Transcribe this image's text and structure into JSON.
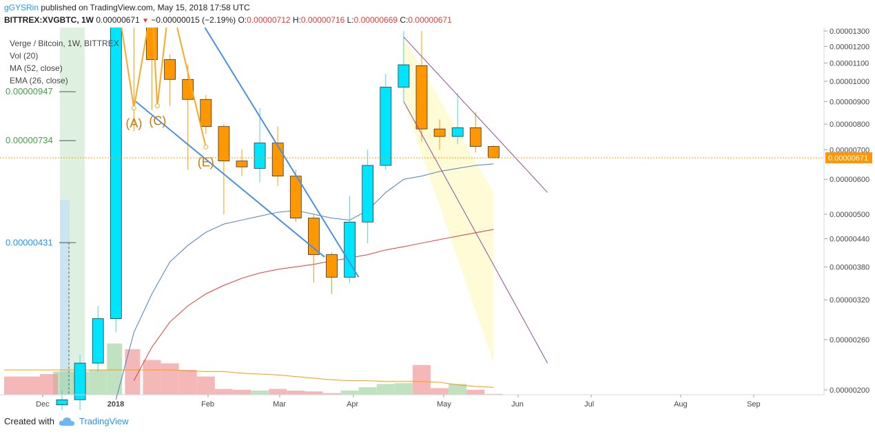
{
  "header": {
    "author": "gGYSRin",
    "published": "published on TradingView.com, May 15, 2018 17:58 UTC",
    "symbol": "BITTREX:XVGBTC, 1W",
    "last": "0.00000671",
    "change": "−0.00000015 (−2.19%)",
    "o_label": "O:",
    "o_val": "0.00000712",
    "h_label": "H:",
    "h_val": "0.00000716",
    "l_label": "L:",
    "l_val": "0.00000669",
    "c_label": "C:",
    "c_val": "0.00000671"
  },
  "legend": {
    "title": "Verge / Bitcoin, 1W, BITTREX",
    "vol": "Vol (20)",
    "ma": "MA (52, close)",
    "ema": "EMA (26, close)"
  },
  "footer": {
    "created": "Created with",
    "brand": "TradingView"
  },
  "colors": {
    "up": "#00e5ff",
    "down": "#ff9800",
    "ma": "#e53935",
    "ema": "#4a80c0",
    "vol_ma": "#ff9800",
    "trend": "#4a90e2",
    "channel": "#8e4a9e"
  },
  "chart_data": {
    "type": "candlestick",
    "x_ticks": [
      "Dec",
      "2018",
      "Feb",
      "Mar",
      "Apr",
      "May",
      "Jun",
      "Jul",
      "Aug",
      "Sep"
    ],
    "y_ticks": [
      "0.00001300",
      "0.00001200",
      "0.00001100",
      "0.00001000",
      "0.00000900",
      "0.00000800",
      "0.00000700",
      "0.00000600",
      "0.00000500",
      "0.00000440",
      "0.00000380",
      "0.00000320",
      "0.00000260",
      "0.00000200"
    ],
    "y_scale": "log",
    "last_price_label": "0.00000671",
    "level_labels": [
      {
        "label": "0.00000947",
        "value": 9.47e-06
      },
      {
        "label": "0.00000734",
        "value": 7.34e-06
      },
      {
        "label": "0.00000431",
        "value": 4.31e-06
      }
    ],
    "wave_labels": [
      "(A)",
      "(C)",
      "(E)"
    ],
    "candles": [
      {
        "o": 1.85e-06,
        "h": 2e-06,
        "l": 1.8e-06,
        "c": 1.9e-06
      },
      {
        "o": 1.9e-06,
        "h": 2.4e-06,
        "l": 1.8e-06,
        "c": 2.3e-06
      },
      {
        "o": 2.3e-06,
        "h": 3.1e-06,
        "l": 2.2e-06,
        "c": 2.9e-06
      },
      {
        "o": 2.9e-06,
        "h": 1.6e-05,
        "l": 2.7e-06,
        "c": 1.5e-05
      },
      {
        "o": 1.5e-05,
        "h": 1.6e-05,
        "l": 7.7e-06,
        "c": 1.4e-05
      },
      {
        "o": 1.4e-05,
        "h": 1.5e-05,
        "l": 8.6e-06,
        "c": 1.12e-05
      },
      {
        "o": 1.12e-05,
        "h": 1.15e-05,
        "l": 8.8e-06,
        "c": 1.01e-05
      },
      {
        "o": 1.01e-05,
        "h": 1.09e-05,
        "l": 6.3e-06,
        "c": 9.1e-06
      },
      {
        "o": 9.1e-06,
        "h": 9.3e-06,
        "l": 7.6e-06,
        "c": 7.9e-06
      },
      {
        "o": 7.9e-06,
        "h": 8e-06,
        "l": 5e-06,
        "c": 6.6e-06
      },
      {
        "o": 6.6e-06,
        "h": 7e-06,
        "l": 6.1e-06,
        "c": 6.4e-06
      },
      {
        "o": 6.35e-06,
        "h": 8.7e-06,
        "l": 5.9e-06,
        "c": 7.25e-06
      },
      {
        "o": 7.25e-06,
        "h": 7.9e-06,
        "l": 5.8e-06,
        "c": 6.1e-06
      },
      {
        "o": 6.1e-06,
        "h": 6.3e-06,
        "l": 4.8e-06,
        "c": 4.9e-06
      },
      {
        "o": 4.9e-06,
        "h": 5e-06,
        "l": 3.5e-06,
        "c": 4.05e-06
      },
      {
        "o": 4.05e-06,
        "h": 4.1e-06,
        "l": 3.3e-06,
        "c": 3.6e-06
      },
      {
        "o": 3.6e-06,
        "h": 5.5e-06,
        "l": 3.5e-06,
        "c": 4.8e-06
      },
      {
        "o": 4.8e-06,
        "h": 7e-06,
        "l": 4.3e-06,
        "c": 6.45e-06
      },
      {
        "o": 6.45e-06,
        "h": 1.04e-05,
        "l": 6.3e-06,
        "c": 9.7e-06
      },
      {
        "o": 9.7e-06,
        "h": 1.3e-05,
        "l": 9e-06,
        "c": 1.09e-05
      },
      {
        "o": 1.085e-05,
        "h": 1.3e-05,
        "l": 7.3e-06,
        "c": 7.8e-06
      },
      {
        "o": 7.8e-06,
        "h": 8.2e-06,
        "l": 7e-06,
        "c": 7.5e-06
      },
      {
        "o": 7.5e-06,
        "h": 9.4e-06,
        "l": 7.2e-06,
        "c": 7.85e-06
      },
      {
        "o": 7.85e-06,
        "h": 8.5e-06,
        "l": 6.9e-06,
        "c": 7.12e-06
      },
      {
        "o": 7.12e-06,
        "h": 7.16e-06,
        "l": 6.69e-06,
        "c": 6.71e-06
      }
    ],
    "volume_relative": [
      0.28,
      0.28,
      0.3,
      0.62,
      0.55,
      0.42,
      0.38,
      0.3,
      0.22,
      0.07,
      0.06,
      0.05,
      0.07,
      0.05,
      0.04,
      0.02,
      0.05,
      0.09,
      0.13,
      0.14,
      0.36,
      0.08,
      0.13,
      0.06,
      0.01
    ],
    "ma52": [
      null,
      null,
      null,
      null,
      2.1e-06,
      2.5e-06,
      2.85e-06,
      3.1e-06,
      3.3e-06,
      3.45e-06,
      3.58e-06,
      3.68e-06,
      3.75e-06,
      3.8e-06,
      3.85e-06,
      3.92e-06,
      3.98e-06,
      4.05e-06,
      4.15e-06,
      4.22e-06,
      4.3e-06,
      4.38e-06,
      4.46e-06,
      4.54e-06,
      4.62e-06
    ],
    "ema26": [
      null,
      null,
      null,
      1.9e-06,
      2.7e-06,
      3.3e-06,
      3.9e-06,
      4.25e-06,
      4.55e-06,
      4.75e-06,
      4.85e-06,
      4.95e-06,
      5.05e-06,
      5.1e-06,
      5e-06,
      4.9e-06,
      4.85e-06,
      5.1e-06,
      5.6e-06,
      6e-06,
      6.1e-06,
      6.25e-06,
      6.35e-06,
      6.45e-06,
      6.5e-06
    ],
    "vol_ma": [
      0.3,
      0.3,
      0.3,
      0.3,
      0.3,
      0.3,
      0.3,
      0.29,
      0.28,
      0.28,
      0.26,
      0.25,
      0.24,
      0.22,
      0.2,
      0.18,
      0.17,
      0.17,
      0.16,
      0.16,
      0.16,
      0.15,
      0.12,
      0.1,
      0.09
    ],
    "wave_points": [
      {
        "i": 3,
        "v": 1.6e-05
      },
      {
        "i": 4,
        "v": 8.7e-06,
        "label": "(A)"
      },
      {
        "i": 5,
        "v": 1.5e-05
      },
      {
        "i": 5.3,
        "v": 8.8e-06,
        "label": "(C)"
      },
      {
        "i": 6,
        "v": 1.55e-05
      },
      {
        "i": 8,
        "v": 7.1e-06,
        "label": "(E)"
      }
    ],
    "trendlines": [
      {
        "from": {
          "i": 4.1,
          "v": 9e-06
        },
        "to": {
          "i": 14.6,
          "v": 4e-06
        }
      },
      {
        "from": {
          "i": 6.7,
          "v": 1.6e-05
        },
        "to": {
          "i": 16.5,
          "v": 3.6e-06
        }
      }
    ],
    "channel": {
      "upper": {
        "from": {
          "i": 19,
          "v": 1.26e-05
        },
        "to": {
          "i": 27,
          "v": 5.6e-06
        }
      },
      "lower": {
        "from": {
          "i": 19,
          "v": 9e-06
        },
        "to": {
          "i": 27,
          "v": 2.3e-06
        }
      }
    }
  }
}
